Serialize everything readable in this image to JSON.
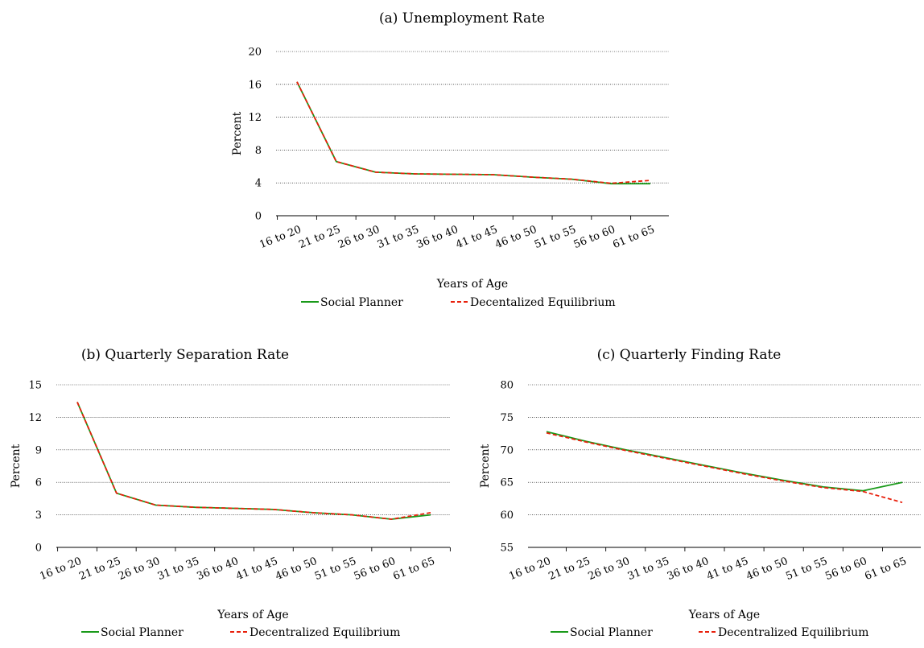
{
  "colors": {
    "social_planner": "#1a9a1a",
    "decentralized": "#e8200c"
  },
  "chart_data": [
    {
      "id": "a",
      "type": "line",
      "title": "(a) Unemployment Rate",
      "xlabel": "Years of Age",
      "ylabel": "Percent",
      "ylim": [
        0,
        20
      ],
      "yticks": [
        0,
        4,
        8,
        12,
        16,
        20
      ],
      "grid": true,
      "legend_position": "bottom",
      "categories": [
        "16 to 20",
        "21 to 25",
        "26 to 30",
        "31 to 35",
        "36 to 40",
        "41 to 45",
        "46 to 50",
        "51 to 55",
        "56 to 60",
        "61 to 65"
      ],
      "series": [
        {
          "name": "Social Planner",
          "style": "solid",
          "values": [
            16.3,
            6.6,
            5.3,
            5.1,
            5.05,
            5.0,
            4.7,
            4.45,
            3.9,
            3.9
          ]
        },
        {
          "name": "Decentalized Equilibrium",
          "style": "dashed",
          "values": [
            16.3,
            6.6,
            5.3,
            5.1,
            5.05,
            5.0,
            4.7,
            4.45,
            3.95,
            4.3
          ]
        }
      ]
    },
    {
      "id": "b",
      "type": "line",
      "title": "(b) Quarterly Separation Rate",
      "xlabel": "Years of Age",
      "ylabel": "Percent",
      "ylim": [
        0,
        15
      ],
      "yticks": [
        0,
        3,
        6,
        9,
        12,
        15
      ],
      "grid": true,
      "legend_position": "bottom",
      "categories": [
        "16 to 20",
        "21 to 25",
        "26 to 30",
        "31 to 35",
        "36 to 40",
        "41 to 45",
        "46 to 50",
        "51 to 55",
        "56 to 60",
        "61 to 65"
      ],
      "series": [
        {
          "name": "Social Planner",
          "style": "solid",
          "values": [
            13.4,
            5.0,
            3.9,
            3.7,
            3.6,
            3.5,
            3.2,
            3.0,
            2.6,
            3.0
          ]
        },
        {
          "name": "Decentralized Equilibrium",
          "style": "dashed",
          "values": [
            13.4,
            5.0,
            3.9,
            3.7,
            3.6,
            3.5,
            3.2,
            3.0,
            2.6,
            3.2
          ]
        }
      ]
    },
    {
      "id": "c",
      "type": "line",
      "title": "(c) Quarterly Finding Rate",
      "xlabel": "Years of Age",
      "ylabel": "Percent",
      "ylim": [
        55,
        80
      ],
      "yticks": [
        55,
        60,
        65,
        70,
        75,
        80
      ],
      "grid": true,
      "legend_position": "bottom",
      "categories": [
        "16 to 20",
        "21 to 25",
        "26 to 30",
        "31 to 35",
        "36 to 40",
        "41 to 45",
        "46 to 50",
        "51 to 55",
        "56 to 60",
        "61 to 65"
      ],
      "series": [
        {
          "name": "Social Planner",
          "style": "solid",
          "values": [
            72.8,
            71.3,
            70.0,
            68.8,
            67.6,
            66.4,
            65.3,
            64.3,
            63.7,
            65.0
          ]
        },
        {
          "name": "Decentralized Equilibrium",
          "style": "dashed",
          "values": [
            72.6,
            71.2,
            69.9,
            68.7,
            67.5,
            66.3,
            65.2,
            64.2,
            63.6,
            61.9
          ]
        }
      ]
    }
  ]
}
